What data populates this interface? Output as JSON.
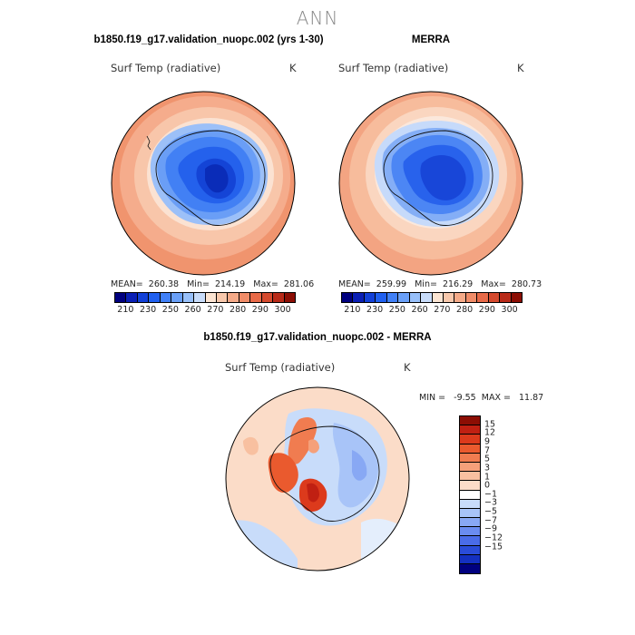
{
  "title": "ANN",
  "panels": [
    {
      "title": "b1850.f19_g17.validation_nuopc.002 (yrs 1-30)",
      "variable": "Surf Temp (radiative)",
      "units": "K",
      "stats": "MEAN=  260.38   Min=  214.19   Max=  281.06"
    },
    {
      "title": "MERRA",
      "variable": "Surf Temp (radiative)",
      "units": "K",
      "stats": "MEAN=  259.99   Min=  216.29   Max=  280.73"
    },
    {
      "title": "b1850.f19_g17.validation_nuopc.002 - MERRA",
      "variable": "Surf Temp (radiative)",
      "units": "K",
      "stats": "MIN =   -9.55  MAX =   11.87"
    }
  ],
  "chart_data": [
    {
      "type": "heatmap",
      "projection": "south polar stereographic",
      "colorbar": {
        "orientation": "horizontal",
        "tick_labels": [
          "210",
          "230",
          "250",
          "260",
          "270",
          "280",
          "290",
          "300"
        ],
        "colors": [
          "#00007f",
          "#0a1fb5",
          "#1240d8",
          "#2060f0",
          "#4080f8",
          "#6aa0f8",
          "#98c0fa",
          "#c8dcfa",
          "#fbe4d2",
          "#f8c8ac",
          "#f5aa88",
          "#f08c68",
          "#e86a48",
          "#d54a2e",
          "#b82a18",
          "#8c0e04"
        ]
      },
      "stats": {
        "mean": 260.38,
        "min": 214.19,
        "max": 281.06
      }
    },
    {
      "type": "heatmap",
      "projection": "south polar stereographic",
      "colorbar": {
        "orientation": "horizontal",
        "tick_labels": [
          "210",
          "230",
          "250",
          "260",
          "270",
          "280",
          "290",
          "300"
        ],
        "colors": [
          "#00007f",
          "#0a1fb5",
          "#1240d8",
          "#2060f0",
          "#4080f8",
          "#6aa0f8",
          "#98c0fa",
          "#c8dcfa",
          "#fbe4d2",
          "#f8c8ac",
          "#f5aa88",
          "#f08c68",
          "#e86a48",
          "#d54a2e",
          "#b82a18",
          "#8c0e04"
        ]
      },
      "stats": {
        "mean": 259.99,
        "min": 216.29,
        "max": 280.73
      }
    },
    {
      "type": "heatmap",
      "projection": "south polar stereographic",
      "colorbar": {
        "orientation": "vertical",
        "tick_labels": [
          "15",
          "12",
          "9",
          "7",
          "5",
          "3",
          "1",
          "0",
          "−1",
          "−3",
          "−5",
          "−7",
          "−9",
          "−12",
          "−15"
        ],
        "colors": [
          "#8c0e04",
          "#c02012",
          "#dc3a1c",
          "#ea5a2e",
          "#f07c50",
          "#f5a07a",
          "#f8c0a0",
          "#fbdcc8",
          "#ffffff",
          "#c8dcfa",
          "#a8c4f8",
          "#88a8f4",
          "#6a8cf0",
          "#4a6ce8",
          "#2a4cd8",
          "#1430c0",
          "#00007f"
        ]
      },
      "stats": {
        "min": -9.55,
        "max": 11.87
      }
    }
  ]
}
